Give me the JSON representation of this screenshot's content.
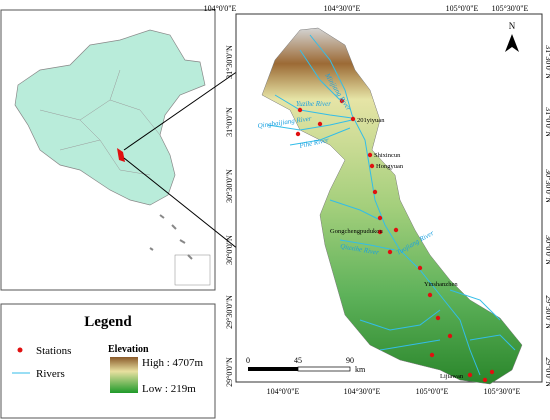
{
  "map": {
    "north": "N",
    "longitudes_top": [
      "104°0'0\"E",
      "104°30'0\"E",
      "105°0'0\"E",
      "105°30'0\"E"
    ],
    "longitudes_bottom": [
      "104°0'0\"E",
      "104°30'0\"E",
      "105°0'0\"E",
      "105°30'0\"E"
    ],
    "latitudes_left": [
      "31°30'0\"N",
      "31°0'0\"N",
      "30°30'0\"N",
      "30°0'0\"N",
      "29°30'0\"N",
      "29°0'0\"N"
    ],
    "latitudes_right": [
      "31°30'0\"N",
      "31°0'0\"N",
      "30°30'0\"N",
      "30°0'0\"N",
      "29°30'0\"N",
      "29°0'0\"N"
    ],
    "rivers": [
      "Minjiang River",
      "Yuzihe River",
      "Qingbaijiang River",
      "Pihe River",
      "Qiuxihe River",
      "Tuojiang River"
    ],
    "stations": [
      "201yiyuan",
      "Shixincun",
      "Hongyuan",
      "Gongchengpudukou",
      "Yinshanzhen",
      "Lijiawan"
    ],
    "scale": {
      "labels": [
        "0",
        "45",
        "90"
      ],
      "unit": "km"
    },
    "legend": {
      "title": "Legend",
      "stations": "Stations",
      "rivers": "Rivers",
      "elevation": "Elevation",
      "high": "High : 4707m",
      "low": "Low : 219m"
    }
  }
}
